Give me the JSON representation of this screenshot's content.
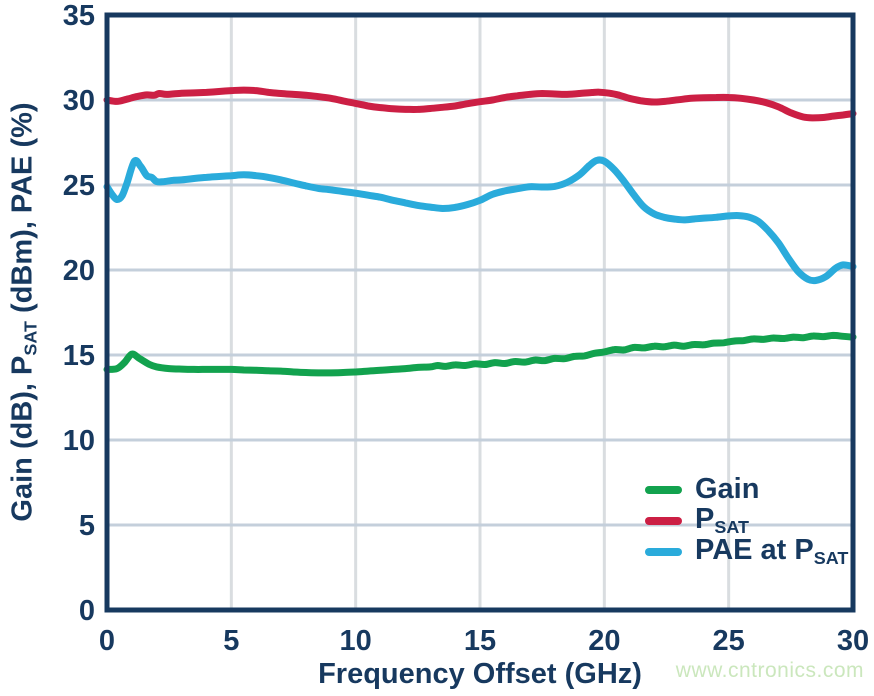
{
  "colors": {
    "axis_and_text": "#17395f",
    "grid_horizontal": "#c4cfdb",
    "grid_vertical": "#d9dde0",
    "background": "#ffffff",
    "gain_green": "#12a24e",
    "psat_red": "#cc1f44",
    "pae_blue": "#2aabdb",
    "watermark_green": "#cbe7bd"
  },
  "watermark": {
    "text": "www.cntronics.com"
  },
  "chart_data": {
    "type": "line",
    "title": "",
    "xlabel": "Frequency Offset (GHz)",
    "ylabel": "Gain (dB), PSAT (dBm), PAE (%)",
    "ylabel_parts": [
      {
        "t": "Gain (dB), P"
      },
      {
        "s": "SAT"
      },
      {
        "t": " (dBm), PAE (%)"
      }
    ],
    "xlim": [
      0,
      30
    ],
    "ylim": [
      0,
      35
    ],
    "xticks": [
      0,
      5,
      10,
      15,
      20,
      25,
      30
    ],
    "yticks": [
      0,
      5,
      10,
      15,
      20,
      25,
      30,
      35
    ],
    "grid": true,
    "legend_position": "bottom-right",
    "series": [
      {
        "name": "Gain",
        "label_parts": [
          {
            "t": "Gain"
          }
        ],
        "color_key": "gain_green",
        "points": [
          [
            0,
            14.15
          ],
          [
            0.4,
            14.2
          ],
          [
            0.7,
            14.55
          ],
          [
            1,
            15.05
          ],
          [
            1.3,
            14.8
          ],
          [
            1.7,
            14.45
          ],
          [
            2,
            14.3
          ],
          [
            2.5,
            14.2
          ],
          [
            3,
            14.17
          ],
          [
            3.5,
            14.15
          ],
          [
            4,
            14.15
          ],
          [
            4.5,
            14.15
          ],
          [
            5,
            14.15
          ],
          [
            5.5,
            14.12
          ],
          [
            6,
            14.1
          ],
          [
            6.5,
            14.07
          ],
          [
            7,
            14.05
          ],
          [
            7.5,
            14.0
          ],
          [
            8,
            13.97
          ],
          [
            8.5,
            13.95
          ],
          [
            9,
            13.95
          ],
          [
            9.5,
            13.97
          ],
          [
            10,
            14.0
          ],
          [
            10.5,
            14.05
          ],
          [
            11,
            14.1
          ],
          [
            11.5,
            14.15
          ],
          [
            12,
            14.2
          ],
          [
            12.5,
            14.27
          ],
          [
            13,
            14.3
          ],
          [
            13.3,
            14.38
          ],
          [
            13.6,
            14.33
          ],
          [
            14,
            14.42
          ],
          [
            14.4,
            14.38
          ],
          [
            14.8,
            14.48
          ],
          [
            15.2,
            14.44
          ],
          [
            15.6,
            14.55
          ],
          [
            16,
            14.5
          ],
          [
            16.4,
            14.62
          ],
          [
            16.8,
            14.58
          ],
          [
            17.2,
            14.7
          ],
          [
            17.6,
            14.67
          ],
          [
            18,
            14.8
          ],
          [
            18.4,
            14.78
          ],
          [
            18.8,
            14.92
          ],
          [
            19.2,
            14.95
          ],
          [
            19.6,
            15.1
          ],
          [
            20,
            15.18
          ],
          [
            20.4,
            15.32
          ],
          [
            20.8,
            15.3
          ],
          [
            21.2,
            15.45
          ],
          [
            21.6,
            15.42
          ],
          [
            22,
            15.52
          ],
          [
            22.4,
            15.48
          ],
          [
            22.8,
            15.58
          ],
          [
            23.2,
            15.52
          ],
          [
            23.6,
            15.62
          ],
          [
            24,
            15.6
          ],
          [
            24.4,
            15.7
          ],
          [
            24.8,
            15.72
          ],
          [
            25.2,
            15.82
          ],
          [
            25.6,
            15.85
          ],
          [
            26,
            15.95
          ],
          [
            26.4,
            15.92
          ],
          [
            26.8,
            16.0
          ],
          [
            27.2,
            15.97
          ],
          [
            27.6,
            16.05
          ],
          [
            28,
            16.02
          ],
          [
            28.4,
            16.12
          ],
          [
            28.8,
            16.08
          ],
          [
            29.2,
            16.15
          ],
          [
            29.6,
            16.1
          ],
          [
            30,
            16.05
          ]
        ]
      },
      {
        "name": "PSAT",
        "label_parts": [
          {
            "t": "P"
          },
          {
            "s": "SAT"
          }
        ],
        "color_key": "psat_red",
        "points": [
          [
            0,
            30.0
          ],
          [
            0.4,
            29.92
          ],
          [
            0.8,
            30.05
          ],
          [
            1.2,
            30.2
          ],
          [
            1.6,
            30.3
          ],
          [
            1.9,
            30.28
          ],
          [
            2.1,
            30.38
          ],
          [
            2.4,
            30.33
          ],
          [
            3,
            30.4
          ],
          [
            3.5,
            30.42
          ],
          [
            4,
            30.45
          ],
          [
            4.5,
            30.5
          ],
          [
            5,
            30.55
          ],
          [
            5.5,
            30.58
          ],
          [
            6,
            30.55
          ],
          [
            6.5,
            30.45
          ],
          [
            7,
            30.38
          ],
          [
            7.5,
            30.33
          ],
          [
            8,
            30.28
          ],
          [
            8.5,
            30.2
          ],
          [
            9,
            30.1
          ],
          [
            9.5,
            29.95
          ],
          [
            10,
            29.8
          ],
          [
            10.5,
            29.65
          ],
          [
            11,
            29.55
          ],
          [
            11.5,
            29.48
          ],
          [
            12,
            29.45
          ],
          [
            12.5,
            29.45
          ],
          [
            13,
            29.5
          ],
          [
            13.5,
            29.57
          ],
          [
            14,
            29.65
          ],
          [
            14.5,
            29.78
          ],
          [
            15,
            29.9
          ],
          [
            15.5,
            30.0
          ],
          [
            16,
            30.15
          ],
          [
            16.5,
            30.25
          ],
          [
            17,
            30.33
          ],
          [
            17.5,
            30.38
          ],
          [
            18,
            30.35
          ],
          [
            18.5,
            30.33
          ],
          [
            19,
            30.38
          ],
          [
            19.5,
            30.44
          ],
          [
            19.8,
            30.46
          ],
          [
            20.2,
            30.4
          ],
          [
            20.6,
            30.28
          ],
          [
            21,
            30.1
          ],
          [
            21.5,
            29.95
          ],
          [
            22,
            29.88
          ],
          [
            22.5,
            29.93
          ],
          [
            23,
            30.02
          ],
          [
            23.5,
            30.1
          ],
          [
            24,
            30.13
          ],
          [
            24.5,
            30.15
          ],
          [
            25,
            30.15
          ],
          [
            25.5,
            30.1
          ],
          [
            26,
            30.0
          ],
          [
            26.5,
            29.85
          ],
          [
            27,
            29.6
          ],
          [
            27.5,
            29.25
          ],
          [
            28,
            29.0
          ],
          [
            28.4,
            28.95
          ],
          [
            28.8,
            28.97
          ],
          [
            29.2,
            29.05
          ],
          [
            29.6,
            29.12
          ],
          [
            30,
            29.2
          ]
        ]
      },
      {
        "name": "PAE at PSAT",
        "label_parts": [
          {
            "t": "PAE at P"
          },
          {
            "s": "SAT"
          }
        ],
        "color_key": "pae_blue",
        "points": [
          [
            0,
            24.9
          ],
          [
            0.2,
            24.45
          ],
          [
            0.4,
            24.15
          ],
          [
            0.6,
            24.35
          ],
          [
            0.8,
            25.1
          ],
          [
            1.1,
            26.4
          ],
          [
            1.35,
            26.1
          ],
          [
            1.6,
            25.55
          ],
          [
            1.8,
            25.45
          ],
          [
            2,
            25.2
          ],
          [
            2.3,
            25.2
          ],
          [
            2.7,
            25.28
          ],
          [
            3,
            25.3
          ],
          [
            3.5,
            25.38
          ],
          [
            4,
            25.45
          ],
          [
            4.5,
            25.5
          ],
          [
            5,
            25.55
          ],
          [
            5.5,
            25.6
          ],
          [
            6,
            25.55
          ],
          [
            6.5,
            25.45
          ],
          [
            7,
            25.3
          ],
          [
            7.5,
            25.12
          ],
          [
            8,
            24.95
          ],
          [
            8.5,
            24.8
          ],
          [
            9,
            24.72
          ],
          [
            9.5,
            24.62
          ],
          [
            10,
            24.52
          ],
          [
            10.5,
            24.4
          ],
          [
            11,
            24.28
          ],
          [
            11.5,
            24.1
          ],
          [
            12,
            23.95
          ],
          [
            12.5,
            23.8
          ],
          [
            13,
            23.7
          ],
          [
            13.5,
            23.62
          ],
          [
            14,
            23.68
          ],
          [
            14.5,
            23.85
          ],
          [
            15,
            24.1
          ],
          [
            15.5,
            24.45
          ],
          [
            16,
            24.65
          ],
          [
            16.5,
            24.78
          ],
          [
            17,
            24.9
          ],
          [
            17.5,
            24.88
          ],
          [
            18,
            24.92
          ],
          [
            18.5,
            25.15
          ],
          [
            19,
            25.6
          ],
          [
            19.4,
            26.15
          ],
          [
            19.7,
            26.45
          ],
          [
            20,
            26.4
          ],
          [
            20.4,
            25.9
          ],
          [
            20.8,
            25.2
          ],
          [
            21.2,
            24.4
          ],
          [
            21.6,
            23.7
          ],
          [
            22,
            23.3
          ],
          [
            22.4,
            23.1
          ],
          [
            22.8,
            23.0
          ],
          [
            23.2,
            22.95
          ],
          [
            23.6,
            23.0
          ],
          [
            24,
            23.05
          ],
          [
            24.5,
            23.1
          ],
          [
            25,
            23.18
          ],
          [
            25.4,
            23.2
          ],
          [
            25.8,
            23.12
          ],
          [
            26.2,
            22.85
          ],
          [
            26.6,
            22.3
          ],
          [
            27,
            21.6
          ],
          [
            27.4,
            20.7
          ],
          [
            27.8,
            19.9
          ],
          [
            28.2,
            19.45
          ],
          [
            28.5,
            19.38
          ],
          [
            28.9,
            19.6
          ],
          [
            29.3,
            20.1
          ],
          [
            29.6,
            20.3
          ],
          [
            30,
            20.2
          ]
        ]
      }
    ]
  }
}
